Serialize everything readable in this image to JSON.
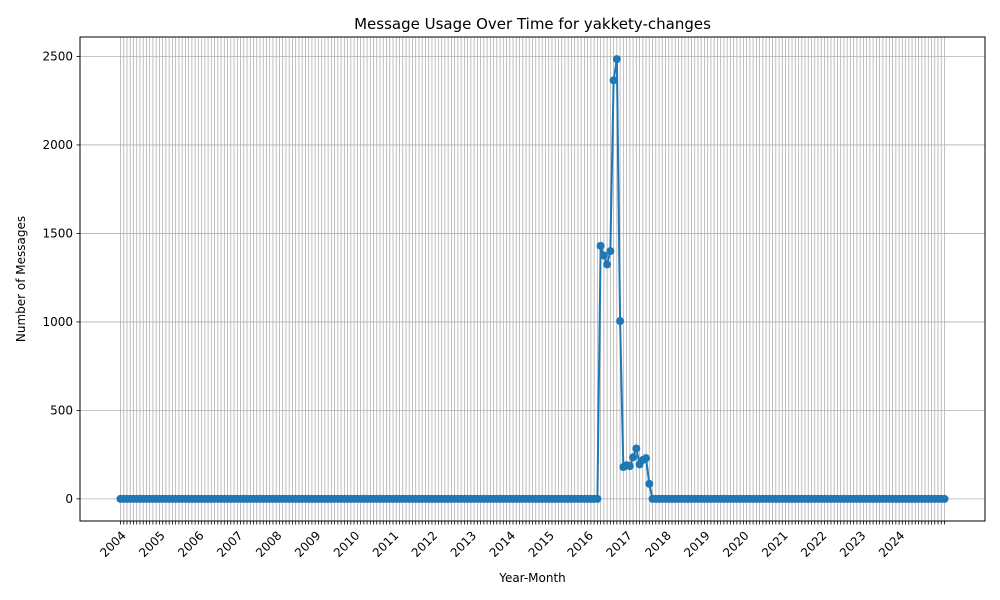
{
  "chart_data": {
    "type": "line",
    "title": "Message Usage Over Time for yakkety-changes",
    "xlabel": "Year-Month",
    "ylabel": "Number of Messages",
    "x_start": "2004-01",
    "x_end": "2025-03",
    "xtick_labels": [
      "2004",
      "2005",
      "2006",
      "2007",
      "2008",
      "2009",
      "2010",
      "2011",
      "2012",
      "2013",
      "2014",
      "2015",
      "2016",
      "2017",
      "2018",
      "2019",
      "2020",
      "2021",
      "2022",
      "2023",
      "2024"
    ],
    "yticks": [
      0,
      500,
      1000,
      1500,
      2000,
      2500
    ],
    "ylim": [
      -125,
      2610
    ],
    "grid": true,
    "color": "#1f77b4",
    "series": [
      {
        "values_nonzero": [
          {
            "x": "2016-05",
            "y": 1430
          },
          {
            "x": "2016-06",
            "y": 1375
          },
          {
            "x": "2016-07",
            "y": 1325
          },
          {
            "x": "2016-08",
            "y": 1400
          },
          {
            "x": "2016-09",
            "y": 2365
          },
          {
            "x": "2016-10",
            "y": 2485
          },
          {
            "x": "2016-11",
            "y": 1005
          },
          {
            "x": "2016-12",
            "y": 180
          },
          {
            "x": "2017-01",
            "y": 190
          },
          {
            "x": "2017-02",
            "y": 185
          },
          {
            "x": "2017-03",
            "y": 235
          },
          {
            "x": "2017-04",
            "y": 285
          },
          {
            "x": "2017-05",
            "y": 195
          },
          {
            "x": "2017-06",
            "y": 220
          },
          {
            "x": "2017-07",
            "y": 230
          },
          {
            "x": "2017-08",
            "y": 85
          }
        ],
        "default_value": 0
      }
    ]
  }
}
